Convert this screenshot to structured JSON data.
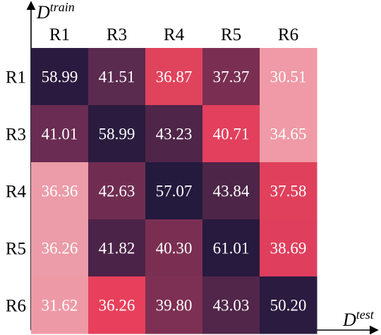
{
  "chart_data": {
    "type": "heatmap",
    "row_axis_label": {
      "base": "D",
      "sup": "train"
    },
    "col_axis_label": {
      "base": "D",
      "sup": "test"
    },
    "columns": [
      "R1",
      "R3",
      "R4",
      "R5",
      "R6"
    ],
    "rows": [
      "R1",
      "R3",
      "R4",
      "R5",
      "R6"
    ],
    "values": [
      [
        58.99,
        41.51,
        36.87,
        37.37,
        30.51
      ],
      [
        41.01,
        58.99,
        43.23,
        40.71,
        34.65
      ],
      [
        36.36,
        42.63,
        57.07,
        43.84,
        37.58
      ],
      [
        36.26,
        41.82,
        40.3,
        61.01,
        38.69
      ],
      [
        31.62,
        36.26,
        39.8,
        43.03,
        50.2
      ]
    ],
    "cell_labels": [
      [
        "58.99",
        "41.51",
        "36.87",
        "37.37",
        "30.51"
      ],
      [
        "41.01",
        "58.99",
        "43.23",
        "40.71",
        "34.65"
      ],
      [
        "36.36",
        "42.63",
        "57.07",
        "43.84",
        "37.58"
      ],
      [
        "36.26",
        "41.82",
        "40.30",
        "61.01",
        "38.69"
      ],
      [
        "31.62",
        "36.26",
        "39.80",
        "43.03",
        "50.20"
      ]
    ],
    "cell_colors": [
      [
        "#2b1a3f",
        "#5a2a4f",
        "#e0435c",
        "#7a2f52",
        "#ef9aa6"
      ],
      [
        "#6a2c52",
        "#2a1b3f",
        "#4f2549",
        "#e2405d",
        "#ef9aa6"
      ],
      [
        "#eb9ca8",
        "#702d51",
        "#231a3d",
        "#4d2548",
        "#e0405c"
      ],
      [
        "#eb9ca8",
        "#4c2348",
        "#7a2f52",
        "#271a3e",
        "#df3f5d"
      ],
      [
        "#ee9aa6",
        "#e8405c",
        "#7d3053",
        "#51264a",
        "#2b1b40"
      ]
    ],
    "grid": false,
    "legend": "none"
  }
}
